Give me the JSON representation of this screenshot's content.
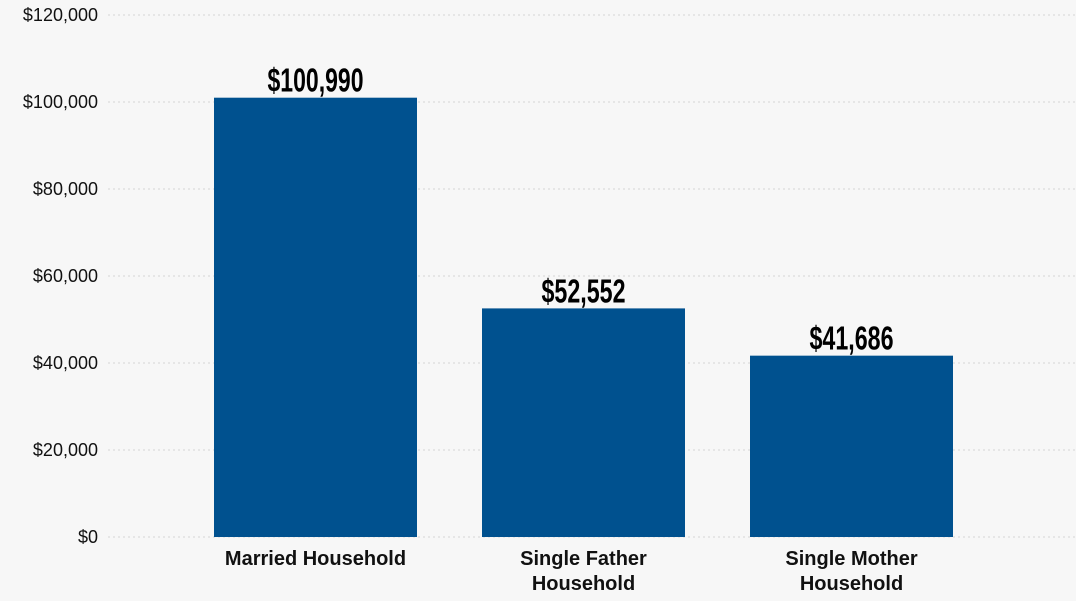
{
  "chart_data": {
    "type": "bar",
    "categories": [
      "Married Household",
      "Single Father Household",
      "Single Mother Household"
    ],
    "category_lines": [
      [
        "Married Household"
      ],
      [
        "Single Father",
        "Household"
      ],
      [
        "Single Mother",
        "Household"
      ]
    ],
    "values": [
      100990,
      52552,
      41686
    ],
    "data_labels": [
      "$100,990",
      "$52,552",
      "$41,686"
    ],
    "ylim": [
      0,
      120000
    ],
    "yticks": [
      0,
      20000,
      40000,
      60000,
      80000,
      100000,
      120000
    ],
    "ytick_labels": [
      "$0",
      "$20,000",
      "$40,000",
      "$60,000",
      "$80,000",
      "$100,000",
      "$120,000"
    ],
    "title": "",
    "xlabel": "",
    "ylabel": "",
    "grid": true,
    "bar_color": "#00518f",
    "background_color": "#f7f7f7"
  }
}
